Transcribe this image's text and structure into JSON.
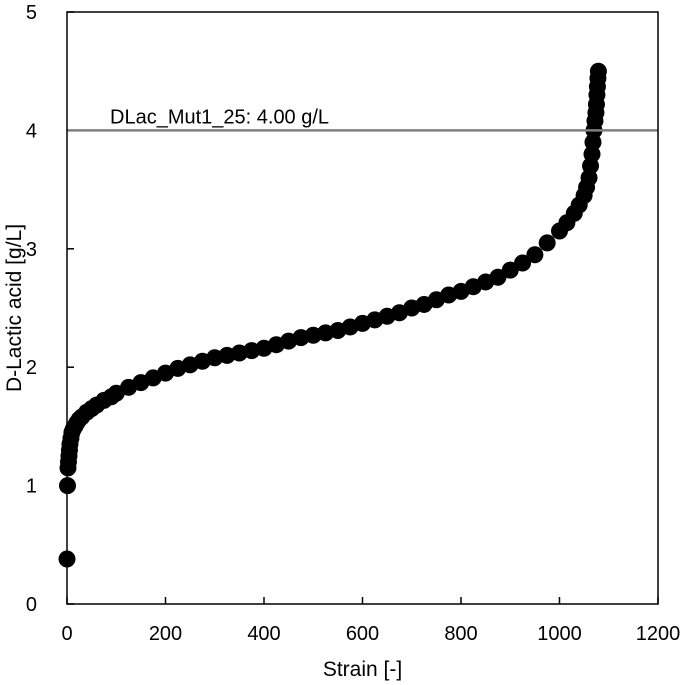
{
  "chart_data": {
    "type": "scatter",
    "title": "",
    "xlabel": "Strain [-]",
    "ylabel": "D-Lactic acid [g/L]",
    "xlim": [
      0,
      1200
    ],
    "ylim": [
      0,
      5
    ],
    "xticks": [
      0,
      200,
      400,
      600,
      800,
      1000,
      1200
    ],
    "yticks": [
      0,
      1,
      2,
      3,
      4,
      5
    ],
    "grid": false,
    "marker_color": "#000000",
    "reference_line": {
      "y": 4.0,
      "label": "DLac_Mut1_25: 4.00 g/L",
      "color": "#808080"
    },
    "series": [
      {
        "x": [
          0,
          1,
          2,
          3,
          4,
          5,
          6,
          8,
          10,
          13,
          16,
          20,
          25,
          30,
          40,
          50,
          60,
          75,
          90,
          100,
          125,
          150,
          175,
          200,
          225,
          250,
          275,
          300,
          325,
          350,
          375,
          400,
          425,
          450,
          475,
          500,
          525,
          550,
          575,
          600,
          625,
          650,
          675,
          700,
          725,
          750,
          775,
          800,
          825,
          850,
          875,
          900,
          925,
          950,
          975,
          1000,
          1015,
          1030,
          1040,
          1050,
          1055,
          1060,
          1063,
          1066,
          1068,
          1070,
          1072,
          1074,
          1075,
          1076,
          1077,
          1078,
          1079
        ],
        "y": [
          0.38,
          1.0,
          1.15,
          1.2,
          1.25,
          1.3,
          1.35,
          1.4,
          1.45,
          1.48,
          1.5,
          1.53,
          1.56,
          1.58,
          1.62,
          1.65,
          1.68,
          1.72,
          1.75,
          1.78,
          1.83,
          1.87,
          1.91,
          1.95,
          1.99,
          2.02,
          2.05,
          2.08,
          2.1,
          2.12,
          2.14,
          2.16,
          2.19,
          2.22,
          2.25,
          2.27,
          2.29,
          2.31,
          2.34,
          2.37,
          2.4,
          2.43,
          2.46,
          2.5,
          2.53,
          2.57,
          2.61,
          2.64,
          2.68,
          2.72,
          2.76,
          2.82,
          2.88,
          2.95,
          3.05,
          3.15,
          3.22,
          3.3,
          3.37,
          3.45,
          3.52,
          3.6,
          3.7,
          3.8,
          3.9,
          4.0,
          4.08,
          4.15,
          4.22,
          4.3,
          4.37,
          4.44,
          4.5
        ]
      }
    ]
  }
}
